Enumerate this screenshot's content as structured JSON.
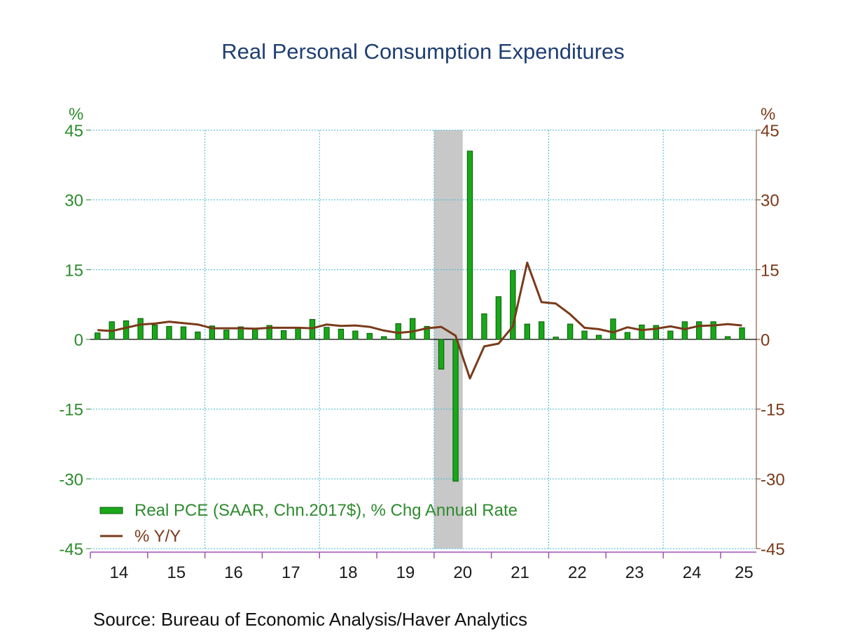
{
  "chart_data": {
    "type": "bar",
    "title": "Real Personal Consumption Expenditures",
    "source": "Source:  Bureau of Economic Analysis/Haver Analytics",
    "left_unit": "%",
    "right_unit": "%",
    "ylim": [
      -45,
      45
    ],
    "yticks": [
      "45",
      "30",
      "15",
      "0",
      "-15",
      "-30",
      "-45"
    ],
    "yticks_values": [
      45,
      30,
      15,
      0,
      -15,
      -30,
      -45
    ],
    "year_labels": [
      "14",
      "15",
      "16",
      "17",
      "18",
      "19",
      "20",
      "21",
      "22",
      "23",
      "24",
      "25"
    ],
    "grid": true,
    "recession_shading": {
      "start": "2020Q1",
      "end": "2020Q2",
      "color": "#c8c8c8"
    },
    "colors": {
      "bars": "#18a818",
      "bar_edge": "#0b5a0b",
      "line": "#7a3a1a",
      "grid": "#41b8d0",
      "left_axis": "#2e8b2e",
      "right_axis": "#7a3a1a",
      "x_axis": "#a050b0",
      "title": "#1f3f73"
    },
    "categories": [
      "2014Q1",
      "2014Q2",
      "2014Q3",
      "2014Q4",
      "2015Q1",
      "2015Q2",
      "2015Q3",
      "2015Q4",
      "2016Q1",
      "2016Q2",
      "2016Q3",
      "2016Q4",
      "2017Q1",
      "2017Q2",
      "2017Q3",
      "2017Q4",
      "2018Q1",
      "2018Q2",
      "2018Q3",
      "2018Q4",
      "2019Q1",
      "2019Q2",
      "2019Q3",
      "2019Q4",
      "2020Q1",
      "2020Q2",
      "2020Q3",
      "2020Q4",
      "2021Q1",
      "2021Q2",
      "2021Q3",
      "2021Q4",
      "2022Q1",
      "2022Q2",
      "2022Q3",
      "2022Q4",
      "2023Q1",
      "2023Q2",
      "2023Q3",
      "2023Q4",
      "2024Q1",
      "2024Q2",
      "2024Q3",
      "2024Q4",
      "2025Q1",
      "2025Q2"
    ],
    "series": [
      {
        "name": "Real PCE (SAAR, Chn.2017$), % Chg Annual Rate",
        "type": "bar",
        "values": [
          1.4,
          3.8,
          4.0,
          4.5,
          3.1,
          2.8,
          2.7,
          1.6,
          2.9,
          2.0,
          2.7,
          2.2,
          3.0,
          1.9,
          2.4,
          4.3,
          2.6,
          2.2,
          1.8,
          1.3,
          0.6,
          3.4,
          4.5,
          2.8,
          -6.4,
          -30.5,
          40.5,
          5.5,
          9.2,
          14.8,
          3.3,
          3.8,
          0.5,
          3.3,
          1.8,
          0.9,
          4.4,
          1.5,
          3.1,
          3.0,
          1.8,
          3.8,
          3.8,
          3.8,
          0.6,
          2.5
        ]
      },
      {
        "name": "% Y/Y",
        "type": "line",
        "values": [
          2.0,
          1.8,
          2.5,
          3.2,
          3.4,
          3.8,
          3.5,
          3.2,
          2.4,
          2.4,
          2.4,
          2.3,
          2.5,
          2.5,
          2.5,
          2.4,
          3.2,
          2.9,
          3.0,
          2.7,
          1.9,
          1.4,
          1.7,
          2.4,
          2.7,
          0.8,
          -8.4,
          -1.5,
          -0.9,
          2.8,
          16.5,
          8.0,
          7.7,
          5.4,
          2.5,
          2.2,
          1.5,
          2.6,
          2.0,
          2.3,
          2.8,
          2.2,
          2.9,
          3.0,
          3.3,
          3.0
        ]
      }
    ]
  }
}
